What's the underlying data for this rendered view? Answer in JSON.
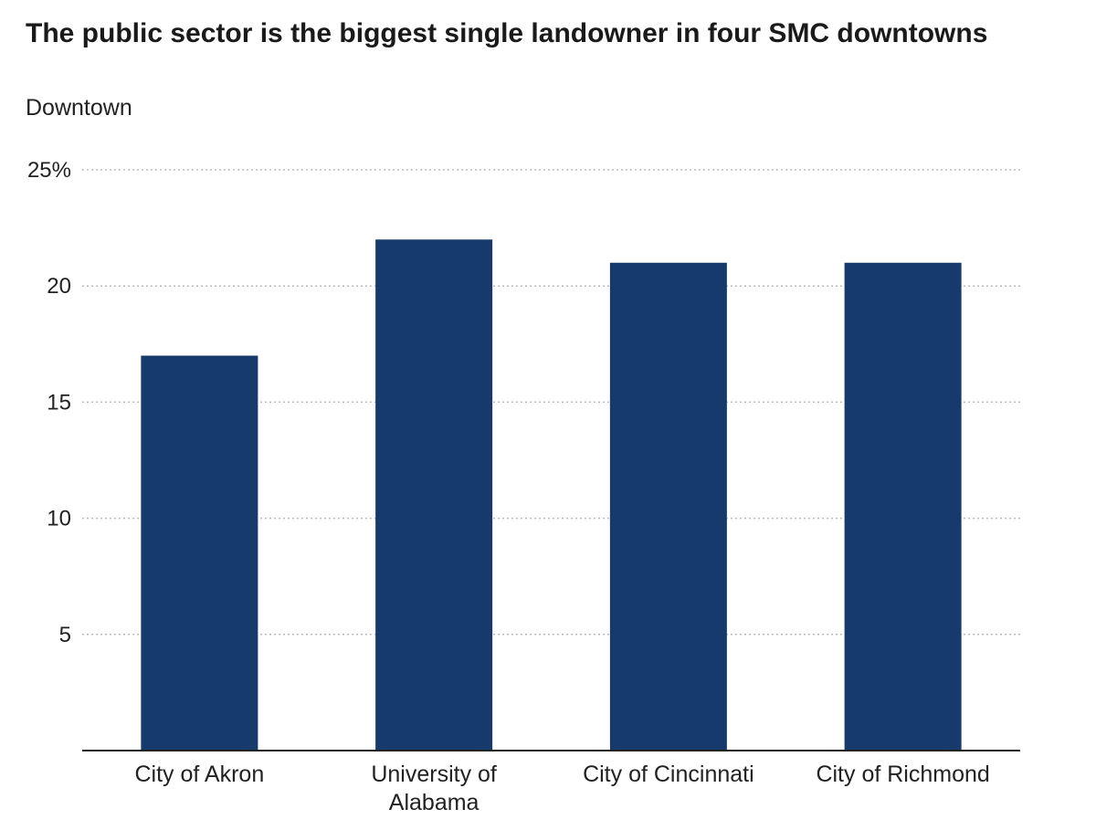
{
  "chart_data": {
    "type": "bar",
    "title": "The public sector is the biggest single landowner in four SMC downtowns",
    "subtitle": "Downtown",
    "categories": [
      [
        "City of Akron"
      ],
      [
        "University of",
        "Alabama"
      ],
      [
        "City of Cincinnati"
      ],
      [
        "City of Richmond"
      ]
    ],
    "values": [
      17,
      22,
      21,
      21
    ],
    "ylim": [
      0,
      25
    ],
    "yticks": [
      {
        "value": 5,
        "label": "5"
      },
      {
        "value": 10,
        "label": "10"
      },
      {
        "value": 15,
        "label": "15"
      },
      {
        "value": 20,
        "label": "20"
      },
      {
        "value": 25,
        "label": "25%"
      }
    ],
    "grid": true,
    "bar_color": "#153a6b",
    "grid_color": "#bbbbbb",
    "axis_color": "#222222"
  }
}
